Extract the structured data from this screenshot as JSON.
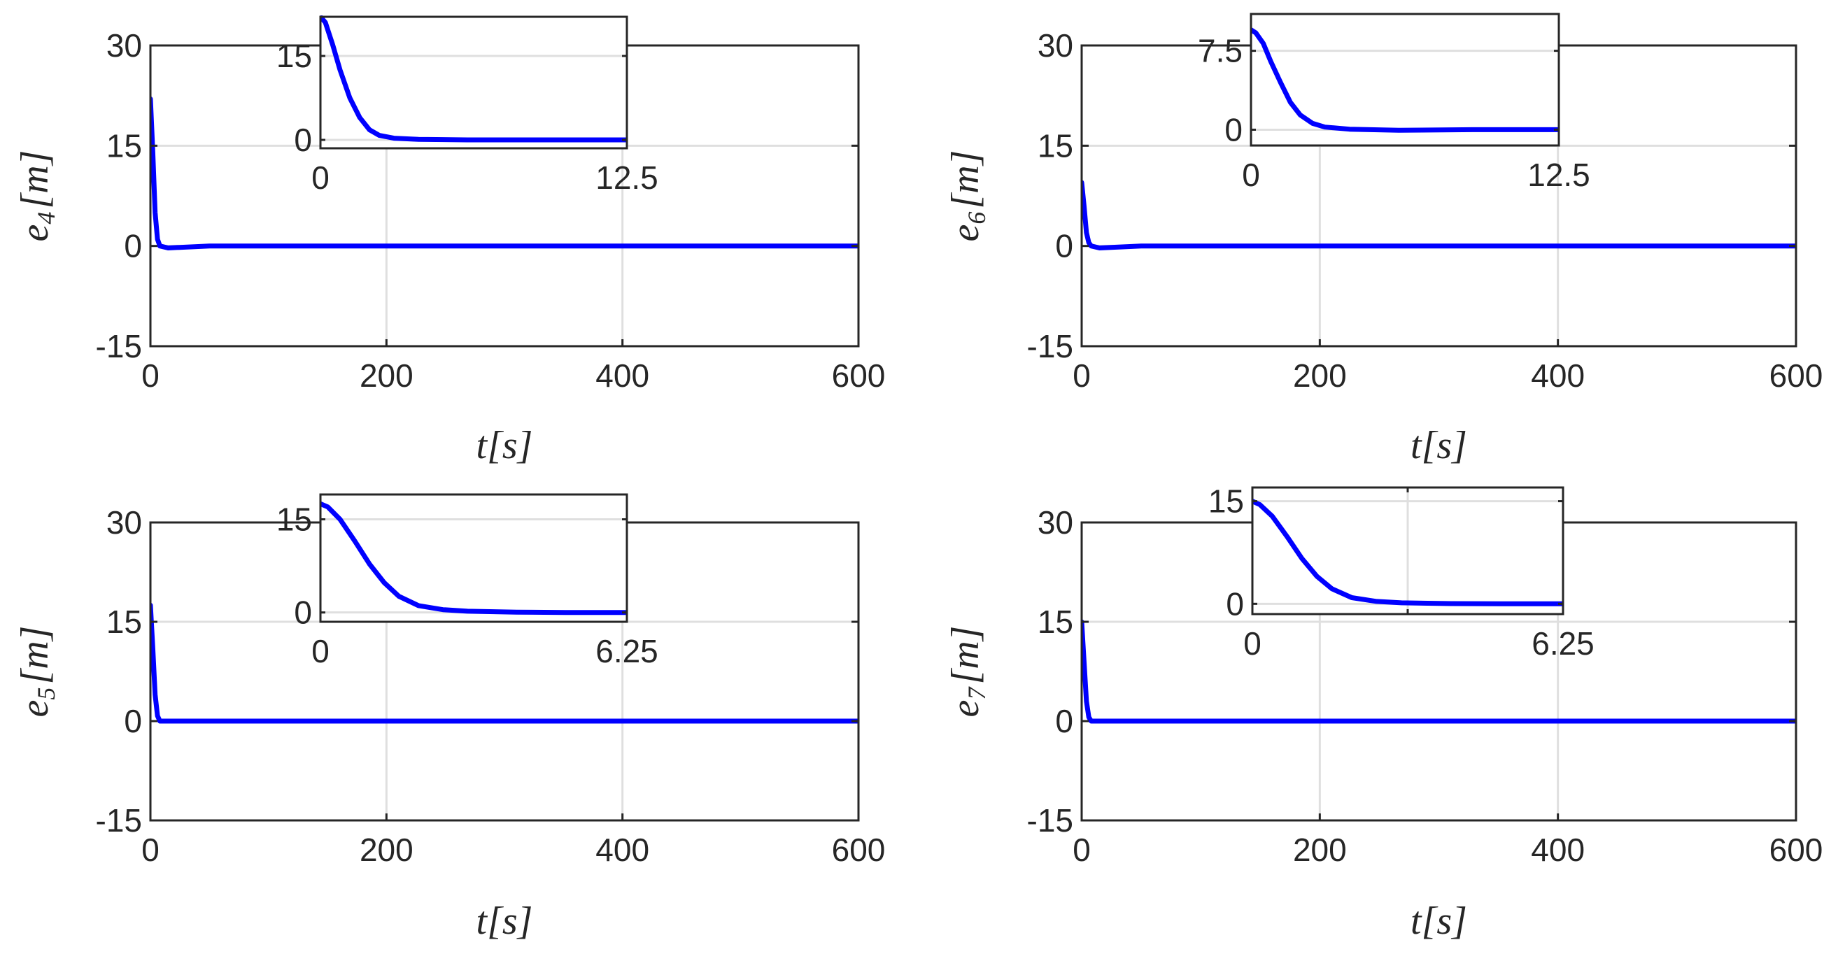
{
  "figure": {
    "line_color": "#0000ff",
    "grid_color": "#dfdfdf",
    "axes_color": "#262626"
  },
  "chart_data": [
    {
      "id": "e4",
      "type": "line",
      "ylabel": {
        "var": "e",
        "sub": "4",
        "open": "[",
        "unit": "m",
        "close": "]"
      },
      "xlabel": {
        "var": "t",
        "open": "[",
        "unit": "s",
        "close": "]"
      },
      "xlim": [
        0,
        600
      ],
      "ylim": [
        -15,
        30
      ],
      "xticks": [
        0,
        200,
        400,
        600
      ],
      "yticks": [
        -15,
        0,
        15,
        30
      ],
      "xtick_labels": [
        "0",
        "200",
        "400",
        "600"
      ],
      "ytick_labels": [
        "-15",
        "0",
        "15",
        "30"
      ],
      "grid": true,
      "series": [
        {
          "x": [
            0,
            2,
            4,
            6,
            8,
            15,
            50,
            200,
            400,
            600
          ],
          "y": [
            22,
            14,
            5,
            1,
            0,
            -0.3,
            0,
            0,
            0,
            0
          ]
        }
      ],
      "inset": {
        "xlim": [
          0,
          12.5
        ],
        "ylim": [
          -1.5,
          22
        ],
        "xticks": [
          0,
          12.5
        ],
        "yticks": [
          0,
          15
        ],
        "xtick_labels": [
          "0",
          "12.5"
        ],
        "ytick_labels": [
          "0",
          "15"
        ],
        "series": [
          {
            "x": [
              0,
              0.2,
              0.5,
              0.8,
              1.2,
              1.6,
              2.0,
              2.4,
              3.0,
              4.0,
              6.0,
              9.0,
              12.5
            ],
            "y": [
              22,
              21,
              17,
              12.5,
              7.5,
              4,
              1.8,
              0.8,
              0.3,
              0.1,
              0,
              0,
              0
            ]
          }
        ]
      }
    },
    {
      "id": "e6",
      "type": "line",
      "ylabel": {
        "var": "e",
        "sub": "6",
        "open": "[",
        "unit": "m",
        "close": "]"
      },
      "xlabel": {
        "var": "t",
        "open": "[",
        "unit": "s",
        "close": "]"
      },
      "xlim": [
        0,
        600
      ],
      "ylim": [
        -15,
        30
      ],
      "xticks": [
        0,
        200,
        400,
        600
      ],
      "yticks": [
        -15,
        0,
        15,
        30
      ],
      "xtick_labels": [
        "0",
        "200",
        "400",
        "600"
      ],
      "ytick_labels": [
        "-15",
        "0",
        "15",
        "30"
      ],
      "grid": true,
      "series": [
        {
          "x": [
            0,
            2,
            4,
            6,
            8,
            15,
            50,
            200,
            400,
            600
          ],
          "y": [
            9.5,
            6,
            2,
            0.5,
            0,
            -0.3,
            0,
            0,
            0,
            0
          ]
        }
      ],
      "inset": {
        "xlim": [
          0,
          12.5
        ],
        "ylim": [
          -1.5,
          11
        ],
        "xticks": [
          0,
          12.5
        ],
        "yticks": [
          0,
          7.5
        ],
        "xtick_labels": [
          "0",
          "12.5"
        ],
        "ytick_labels": [
          "0",
          "7.5"
        ],
        "series": [
          {
            "x": [
              0,
              0.2,
              0.5,
              0.8,
              1.2,
              1.6,
              2.0,
              2.5,
              3.0,
              4.0,
              6.0,
              9.0,
              12.5
            ],
            "y": [
              9.5,
              9.2,
              8.2,
              6.5,
              4.5,
              2.6,
              1.4,
              0.6,
              0.25,
              0.05,
              -0.05,
              0,
              0
            ]
          }
        ]
      }
    },
    {
      "id": "e5",
      "type": "line",
      "ylabel": {
        "var": "e",
        "sub": "5",
        "open": "[",
        "unit": "m",
        "close": "]"
      },
      "xlabel": {
        "var": "t",
        "open": "[",
        "unit": "s",
        "close": "]"
      },
      "xlim": [
        0,
        600
      ],
      "ylim": [
        -15,
        30
      ],
      "xticks": [
        0,
        200,
        400,
        600
      ],
      "yticks": [
        -15,
        0,
        15,
        30
      ],
      "xtick_labels": [
        "0",
        "200",
        "400",
        "600"
      ],
      "ytick_labels": [
        "-15",
        "0",
        "15",
        "30"
      ],
      "grid": true,
      "series": [
        {
          "x": [
            0,
            2,
            4,
            6,
            8,
            15,
            50,
            200,
            400,
            600
          ],
          "y": [
            17.5,
            11,
            4,
            0.8,
            0,
            0,
            0,
            0,
            0,
            0
          ]
        }
      ],
      "inset": {
        "xlim": [
          0,
          6.25
        ],
        "ylim": [
          -1.5,
          19
        ],
        "xticks": [
          0,
          6.25
        ],
        "yticks": [
          0,
          15
        ],
        "xtick_labels": [
          "0",
          "6.25"
        ],
        "ytick_labels": [
          "0",
          "15"
        ],
        "series": [
          {
            "x": [
              0,
              0.15,
              0.4,
              0.7,
              1.0,
              1.3,
              1.6,
              2.0,
              2.5,
              3.0,
              4.0,
              5.0,
              6.25
            ],
            "y": [
              17.5,
              17,
              15,
              11.5,
              7.8,
              4.8,
              2.6,
              1.1,
              0.45,
              0.2,
              0.05,
              0,
              0
            ]
          }
        ]
      }
    },
    {
      "id": "e7",
      "type": "line",
      "ylabel": {
        "var": "e",
        "sub": "7",
        "open": "[",
        "unit": "m",
        "close": "]"
      },
      "xlabel": {
        "var": "t",
        "open": "[",
        "unit": "s",
        "close": "]"
      },
      "xlim": [
        0,
        600
      ],
      "ylim": [
        -15,
        30
      ],
      "xticks": [
        0,
        200,
        400,
        600
      ],
      "yticks": [
        -15,
        0,
        15,
        30
      ],
      "xtick_labels": [
        "0",
        "200",
        "400",
        "600"
      ],
      "ytick_labels": [
        "-15",
        "0",
        "15",
        "30"
      ],
      "grid": true,
      "series": [
        {
          "x": [
            0,
            2,
            4,
            6,
            8,
            15,
            50,
            200,
            400,
            600
          ],
          "y": [
            15,
            9,
            3,
            0.6,
            0,
            0,
            0,
            0,
            0,
            0
          ]
        }
      ],
      "inset": {
        "xlim": [
          0,
          6.25
        ],
        "ylim": [
          -1.5,
          17
        ],
        "xticks": [
          0,
          3.125,
          6.25
        ],
        "yticks": [
          0,
          15
        ],
        "xtick_labels": [
          "0",
          "",
          "6.25"
        ],
        "ytick_labels": [
          "0",
          "15"
        ],
        "series": [
          {
            "x": [
              0,
              0.15,
              0.4,
              0.7,
              1.0,
              1.3,
              1.6,
              2.0,
              2.5,
              3.0,
              4.0,
              5.0,
              6.25
            ],
            "y": [
              15,
              14.5,
              12.8,
              9.8,
              6.6,
              4.0,
              2.2,
              0.9,
              0.35,
              0.15,
              0.03,
              0,
              0
            ]
          }
        ]
      }
    }
  ]
}
